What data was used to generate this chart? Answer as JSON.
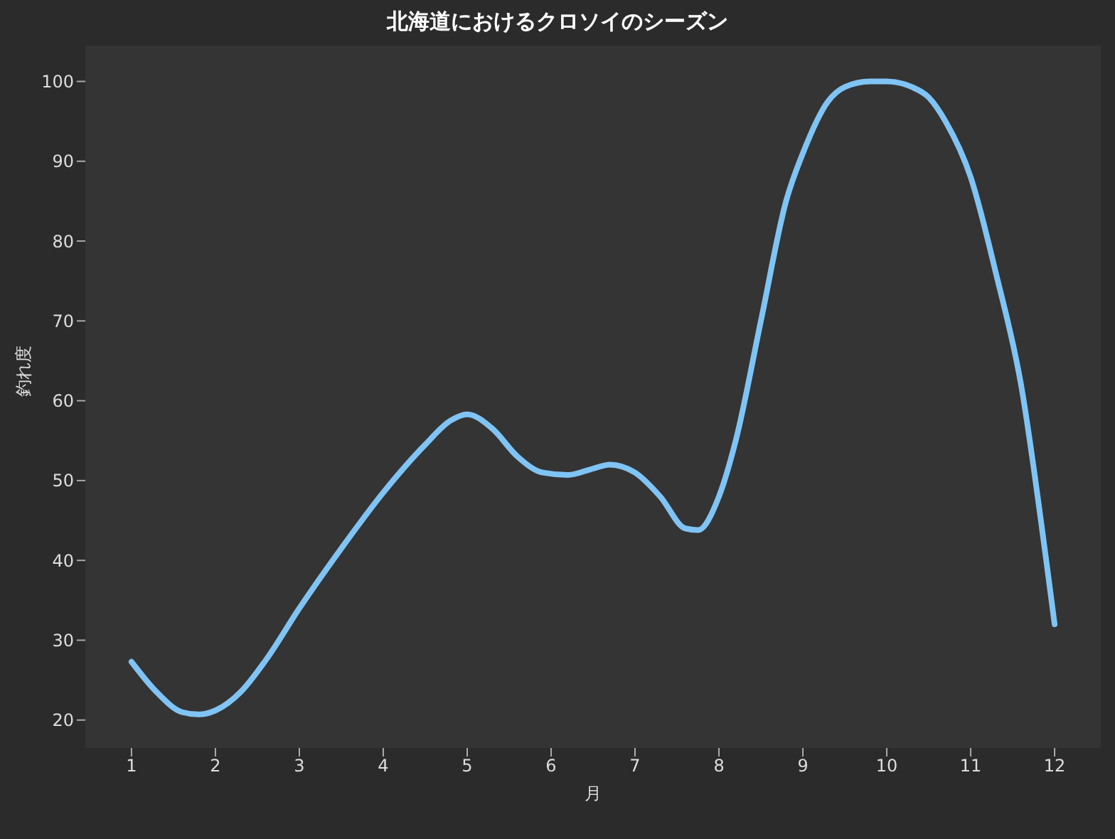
{
  "chart_data": {
    "type": "line",
    "title": "北海道におけるクロソイのシーズン",
    "xlabel": "月",
    "ylabel": "釣れ度",
    "x": [
      1,
      1.3,
      1.6,
      1.8,
      2,
      2.3,
      2.6,
      3,
      3.5,
      4,
      4.5,
      4.8,
      5,
      5.3,
      5.6,
      5.9,
      6.2,
      6.5,
      6.7,
      7,
      7.3,
      7.6,
      7.75,
      8,
      8.2,
      8.5,
      8.8,
      9,
      9.3,
      9.5,
      9.8,
      10,
      10.3,
      10.5,
      10.7,
      11,
      11.3,
      11.6,
      11.9,
      12
    ],
    "series": [
      {
        "color": "#7fc4f5",
        "values": [
          27.3,
          23.5,
          21,
          20.7,
          21.2,
          23.5,
          27.5,
          34,
          41.5,
          48.5,
          54.5,
          57.5,
          58.3,
          56.5,
          53,
          51,
          50.7,
          51.5,
          52,
          51,
          48,
          44,
          43.8,
          48,
          55,
          70,
          85,
          91,
          97.5,
          99.3,
          100,
          100,
          99.3,
          98,
          95,
          88,
          76,
          62,
          40,
          32
        ]
      }
    ],
    "xlim": [
      0.45,
      12.55
    ],
    "xticks": [
      1,
      2,
      3,
      4,
      5,
      6,
      7,
      8,
      9,
      10,
      11,
      12
    ],
    "ylim": [
      16.5,
      104.5
    ],
    "yticks": [
      20,
      30,
      40,
      50,
      60,
      70,
      80,
      90,
      100
    ],
    "grid": false,
    "legend": false
  }
}
